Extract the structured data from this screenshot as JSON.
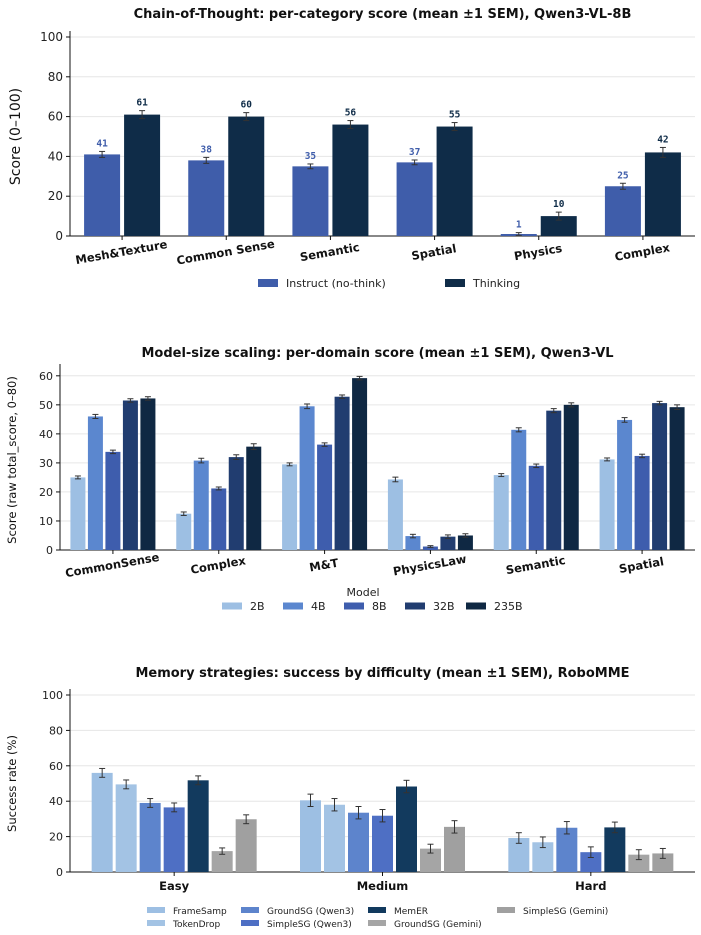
{
  "chart_data": [
    {
      "type": "bar",
      "title": "Chain-of-Thought: per-category score (mean ±1 SEM), Qwen3-VL-8B",
      "xlabel": "",
      "ylabel": "Score (0–100)",
      "ylim": [
        0,
        100
      ],
      "yticks": [
        0,
        20,
        40,
        60,
        80,
        100
      ],
      "grid": true,
      "legend_position": "bottom",
      "categories": [
        "Mesh&Texture",
        "Common Sense",
        "Semantic",
        "Spatial",
        "Physics",
        "Complex"
      ],
      "series": [
        {
          "name": "Instruct (no-think)",
          "color": "#3F5DAA",
          "values": [
            41,
            38,
            35,
            37,
            1,
            25
          ],
          "sem": [
            1.5,
            1.5,
            1.2,
            1.2,
            0.7,
            1.5
          ]
        },
        {
          "name": "Thinking",
          "color": "#0F2C48",
          "values": [
            61,
            60,
            56,
            55,
            10,
            42
          ],
          "sem": [
            2,
            2,
            2,
            2,
            2,
            2.5
          ]
        }
      ],
      "data_labels": [
        [
          "41",
          "38",
          "35",
          "37",
          "1",
          "25"
        ],
        [
          "61",
          "60",
          "56",
          "55",
          "10",
          "42"
        ]
      ]
    },
    {
      "type": "bar",
      "title": "Model-size scaling: per-domain score (mean ±1 SEM), Qwen3-VL",
      "xlabel": "",
      "ylabel": "Score (raw total_score, 0–80)",
      "ylim": [
        0,
        62
      ],
      "yticks": [
        0,
        10,
        20,
        30,
        40,
        50,
        60
      ],
      "grid": true,
      "legend_title": "Model",
      "legend_position": "bottom",
      "categories": [
        "CommonSense",
        "Complex",
        "M&T",
        "PhysicsLaw",
        "Semantic",
        "Spatial"
      ],
      "series": [
        {
          "name": "2B",
          "color": "#9DBFE3",
          "values": [
            25,
            12.5,
            29.5,
            24.3,
            25.8,
            31.2
          ],
          "sem": [
            0.5,
            0.6,
            0.5,
            0.8,
            0.5,
            0.5
          ]
        },
        {
          "name": "4B",
          "color": "#5B87CF",
          "values": [
            46,
            30.8,
            49.5,
            4.8,
            41.4,
            44.8
          ],
          "sem": [
            0.7,
            0.8,
            0.8,
            0.6,
            0.7,
            0.8
          ]
        },
        {
          "name": "8B",
          "color": "#3E5DAD",
          "values": [
            33.8,
            21.2,
            36.3,
            1.2,
            29,
            32.4
          ],
          "sem": [
            0.6,
            0.5,
            0.6,
            0.3,
            0.6,
            0.6
          ]
        },
        {
          "name": "32B",
          "color": "#213D70",
          "values": [
            51.5,
            32,
            52.8,
            4.6,
            48,
            50.6
          ],
          "sem": [
            0.6,
            0.8,
            0.6,
            0.6,
            0.7,
            0.6
          ]
        },
        {
          "name": "235B",
          "color": "#0F2843",
          "values": [
            52.2,
            35.6,
            59.2,
            5,
            50,
            49.2
          ],
          "sem": [
            0.6,
            1,
            0.6,
            0.6,
            0.7,
            0.8
          ]
        }
      ]
    },
    {
      "type": "bar",
      "title": "Memory strategies: success by difficulty (mean ±1 SEM), RoboMME",
      "xlabel": "",
      "ylabel": "Success rate (%)",
      "ylim": [
        0,
        100
      ],
      "yticks": [
        0,
        20,
        40,
        60,
        80,
        100
      ],
      "grid": true,
      "legend_position": "bottom",
      "categories": [
        "Easy",
        "Medium",
        "Hard"
      ],
      "series": [
        {
          "name": "FrameSamp",
          "color": "#9DBFE3",
          "values": [
            56,
            40.5,
            19.2
          ],
          "sem": [
            2.5,
            3.5,
            3
          ]
        },
        {
          "name": "TokenDrop",
          "color": "#A3C3E4",
          "values": [
            49.5,
            38,
            16.8
          ],
          "sem": [
            2.5,
            3.5,
            3
          ]
        },
        {
          "name": "GroundSG (Qwen3)",
          "color": "#5D84CC",
          "values": [
            39,
            33.5,
            25
          ],
          "sem": [
            2.5,
            3.5,
            3.5
          ]
        },
        {
          "name": "SimpleSG (Qwen3)",
          "color": "#4E6FC4",
          "values": [
            36.5,
            31.8,
            11.2
          ],
          "sem": [
            2.5,
            3.5,
            3
          ]
        },
        {
          "name": "MemER",
          "color": "#123A5E",
          "values": [
            51.8,
            48.3,
            25.2
          ],
          "sem": [
            2.5,
            3.5,
            3
          ]
        },
        {
          "name": "GroundSG (Gemini)",
          "color": "#A5A5A5",
          "values": [
            11.8,
            13.2,
            9.8
          ],
          "sem": [
            1.8,
            2.5,
            2.8
          ]
        },
        {
          "name": "SimpleSG (Gemini)",
          "color": "#A0A0A0",
          "values": [
            29.8,
            25.5,
            10.5
          ],
          "sem": [
            2.5,
            3.5,
            2.8
          ]
        }
      ]
    }
  ]
}
